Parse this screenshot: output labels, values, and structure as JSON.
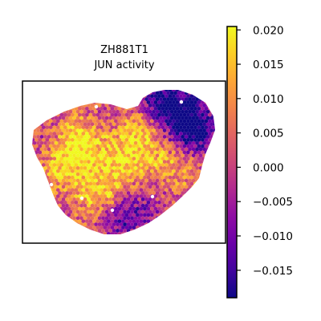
{
  "chart_data": {
    "type": "heatmap",
    "subtype": "spatial-spot-map",
    "title_lines": [
      "ZH881T1",
      "JUN activity"
    ],
    "xlabel": "",
    "ylabel": "",
    "grid": false,
    "colormap": "plasma",
    "colorbar": {
      "min": -0.019,
      "max": 0.0205,
      "ticks": [
        {
          "value": 0.02,
          "label": "0.020"
        },
        {
          "value": 0.015,
          "label": "0.015"
        },
        {
          "value": 0.01,
          "label": "0.010"
        },
        {
          "value": 0.005,
          "label": "0.005"
        },
        {
          "value": 0.0,
          "label": "0.000"
        },
        {
          "value": -0.005,
          "label": "−0.005"
        },
        {
          "value": -0.01,
          "label": "−0.010"
        },
        {
          "value": -0.015,
          "label": "−0.015"
        }
      ]
    },
    "note": "Hexagonal tissue spots colored by JUN activity score; values mostly range between about -0.015 and 0.02, with purple (low) regions concentrated in the upper-right lobe and orange/yellow (high) patches scattered through the left and central regions."
  }
}
